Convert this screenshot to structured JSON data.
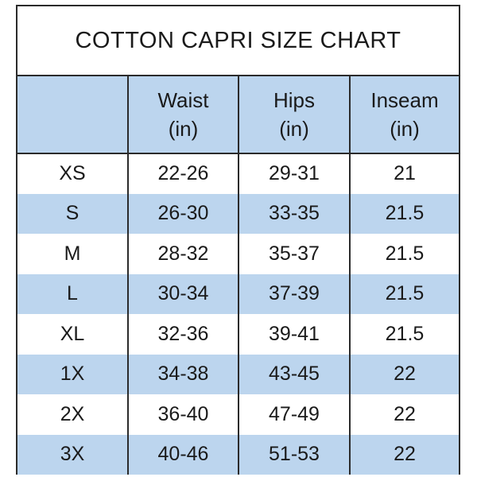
{
  "title": "COTTON CAPRI SIZE CHART",
  "columns": [
    {
      "line1": "",
      "line2": ""
    },
    {
      "line1": "Waist",
      "line2": "(in)"
    },
    {
      "line1": "Hips",
      "line2": "(in)"
    },
    {
      "line1": "Inseam",
      "line2": "(in)"
    }
  ],
  "rows": [
    {
      "size": "XS",
      "waist": "22-26",
      "hips": "29-31",
      "inseam": "21"
    },
    {
      "size": "S",
      "waist": "26-30",
      "hips": "33-35",
      "inseam": "21.5"
    },
    {
      "size": "M",
      "waist": "28-32",
      "hips": "35-37",
      "inseam": "21.5"
    },
    {
      "size": "L",
      "waist": "30-34",
      "hips": "37-39",
      "inseam": "21.5"
    },
    {
      "size": "XL",
      "waist": "32-36",
      "hips": "39-41",
      "inseam": "21.5"
    },
    {
      "size": "1X",
      "waist": "34-38",
      "hips": "43-45",
      "inseam": "22"
    },
    {
      "size": "2X",
      "waist": "36-40",
      "hips": "47-49",
      "inseam": "22"
    },
    {
      "size": "3X",
      "waist": "40-46",
      "hips": "51-53",
      "inseam": "22"
    }
  ],
  "colors": {
    "band": "#bcd5ee",
    "border": "#2b2b2b",
    "background": "#ffffff"
  }
}
